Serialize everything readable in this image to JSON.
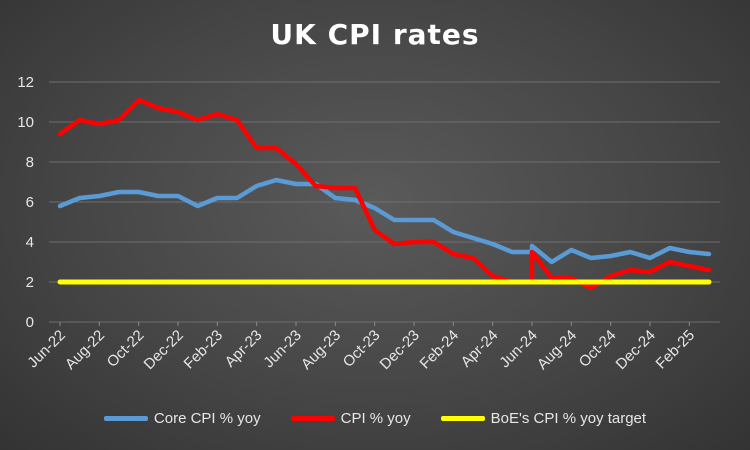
{
  "chart_data": {
    "type": "line",
    "title": "UK CPI rates",
    "xlabel": "",
    "ylabel": "",
    "ylim": [
      0,
      12
    ],
    "yticks": [
      "0",
      "2",
      "4",
      "6",
      "8",
      "10",
      "12"
    ],
    "grid": true,
    "legend_position": "bottom",
    "x_tick_labels": [
      "Jun-22",
      "Aug-22",
      "Oct-22",
      "Dec-22",
      "Feb-23",
      "Apr-23",
      "Jun-23",
      "Aug-23",
      "Oct-23",
      "Dec-23",
      "Feb-24",
      "Apr-24",
      "Jun-24",
      "Aug-24",
      "Oct-24",
      "Dec-24",
      "Feb-25"
    ],
    "series": [
      {
        "name": "Core CPI % yoy",
        "color": "#5b9bd5",
        "points": [
          [
            0,
            5.8
          ],
          [
            1,
            6.2
          ],
          [
            2,
            6.3
          ],
          [
            3,
            6.5
          ],
          [
            4,
            6.5
          ],
          [
            5,
            6.3
          ],
          [
            6,
            6.3
          ],
          [
            7,
            5.8
          ],
          [
            8,
            6.2
          ],
          [
            9,
            6.2
          ],
          [
            10,
            6.8
          ],
          [
            11,
            7.1
          ],
          [
            12,
            6.9
          ],
          [
            13,
            6.9
          ],
          [
            14,
            6.2
          ],
          [
            15,
            6.1
          ],
          [
            16,
            5.7
          ],
          [
            17,
            5.1
          ],
          [
            18,
            5.1
          ],
          [
            19,
            5.1
          ],
          [
            20,
            4.5
          ],
          [
            21,
            4.2
          ],
          [
            22,
            3.9
          ],
          [
            23,
            3.5
          ],
          [
            24,
            3.5
          ],
          [
            24,
            3.8
          ],
          [
            25,
            3.0
          ],
          [
            26,
            3.6
          ],
          [
            27,
            3.2
          ],
          [
            28,
            3.3
          ],
          [
            29,
            3.5
          ],
          [
            30,
            3.2
          ],
          [
            31,
            3.7
          ],
          [
            32,
            3.5
          ],
          [
            33,
            3.4
          ]
        ]
      },
      {
        "name": "CPI % yoy",
        "color": "#ff0000",
        "points": [
          [
            0,
            9.4
          ],
          [
            1,
            10.1
          ],
          [
            2,
            9.9
          ],
          [
            3,
            10.1
          ],
          [
            4,
            11.1
          ],
          [
            5,
            10.7
          ],
          [
            6,
            10.5
          ],
          [
            7,
            10.1
          ],
          [
            8,
            10.4
          ],
          [
            9,
            10.1
          ],
          [
            10,
            8.7
          ],
          [
            11,
            8.7
          ],
          [
            12,
            7.9
          ],
          [
            13,
            6.8
          ],
          [
            14,
            6.7
          ],
          [
            15,
            6.7
          ],
          [
            16,
            4.6
          ],
          [
            17,
            3.9
          ],
          [
            18,
            4.0
          ],
          [
            19,
            4.0
          ],
          [
            20,
            3.4
          ],
          [
            21,
            3.2
          ],
          [
            22,
            2.3
          ],
          [
            23,
            2.0
          ],
          [
            24,
            2.0
          ],
          [
            24,
            3.5
          ],
          [
            25,
            2.2
          ],
          [
            26,
            2.2
          ],
          [
            27,
            1.7
          ],
          [
            28,
            2.3
          ],
          [
            29,
            2.6
          ],
          [
            30,
            2.5
          ],
          [
            31,
            3.0
          ],
          [
            32,
            2.8
          ],
          [
            33,
            2.6
          ]
        ]
      },
      {
        "name": "BoE's CPI % yoy target",
        "color": "#ffff00",
        "points": [
          [
            0,
            2
          ],
          [
            33,
            2
          ]
        ]
      }
    ]
  }
}
